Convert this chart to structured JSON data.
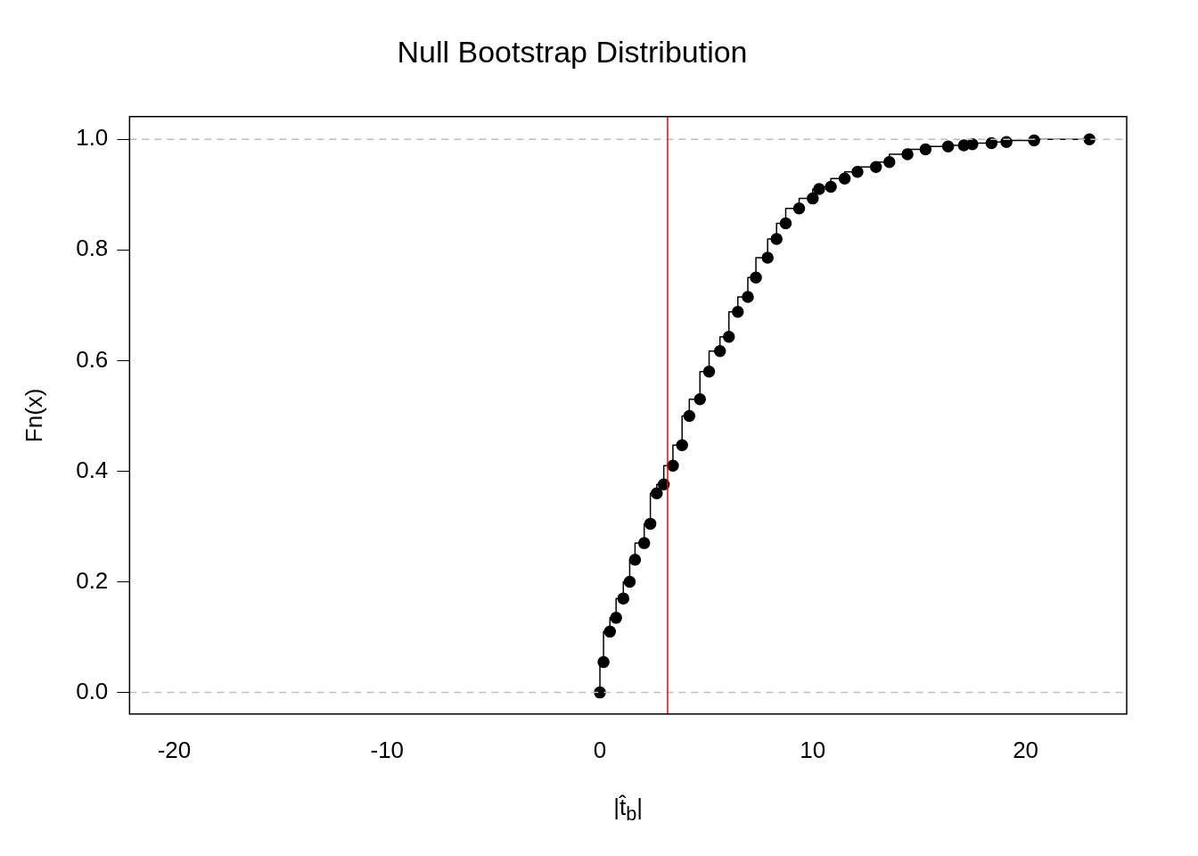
{
  "chart_data": {
    "type": "step",
    "title": "Null Bootstrap Distribution",
    "xlabel": "|t̂$_{b}$|",
    "ylabel": "Fn(x)",
    "xlim": [
      -22.1,
      24.75
    ],
    "ylim": [
      -0.039,
      1.041
    ],
    "xticks": [
      -20,
      -10,
      0,
      10,
      20
    ],
    "yticks": [
      {
        "value": 0,
        "label": "0.0"
      },
      0.2,
      0.4,
      0.6,
      0.8,
      {
        "value": 1,
        "label": "1.0"
      }
    ],
    "marker": "circle",
    "grid": false,
    "legend": false,
    "series": [
      {
        "color": "#000000",
        "x": [
          0,
          0.17,
          0.47,
          0.76,
          1.1,
          1.4,
          1.65,
          2.08,
          2.37,
          2.67,
          3.0,
          3.43,
          3.86,
          4.2,
          4.7,
          5.13,
          5.64,
          6.06,
          6.48,
          6.95,
          7.33,
          7.88,
          8.3,
          8.73,
          9.36,
          10.0,
          10.3,
          10.85,
          11.5,
          12.1,
          12.97,
          13.6,
          14.45,
          15.3,
          16.36,
          17.1,
          17.5,
          18.4,
          19.1,
          20.4,
          23.0
        ],
        "values": [
          0,
          0.055,
          0.11,
          0.135,
          0.17,
          0.2,
          0.24,
          0.27,
          0.305,
          0.36,
          0.376,
          0.41,
          0.447,
          0.5,
          0.53,
          0.58,
          0.617,
          0.643,
          0.688,
          0.715,
          0.75,
          0.786,
          0.82,
          0.848,
          0.875,
          0.893,
          0.91,
          0.914,
          0.929,
          0.941,
          0.95,
          0.959,
          0.973,
          0.982,
          0.987,
          0.989,
          0.991,
          0.993,
          0.995,
          0.998,
          1.0
        ]
      }
    ],
    "ref_lines": [
      {
        "axis": "y",
        "value": 0,
        "color": "#bebebe",
        "line_style": "dashed"
      },
      {
        "axis": "y",
        "value": 1,
        "color": "#bebebe",
        "line_style": "dashed"
      },
      {
        "axis": "x",
        "value": 3.18,
        "color": "#ff0000",
        "line_style": "solid"
      }
    ]
  }
}
